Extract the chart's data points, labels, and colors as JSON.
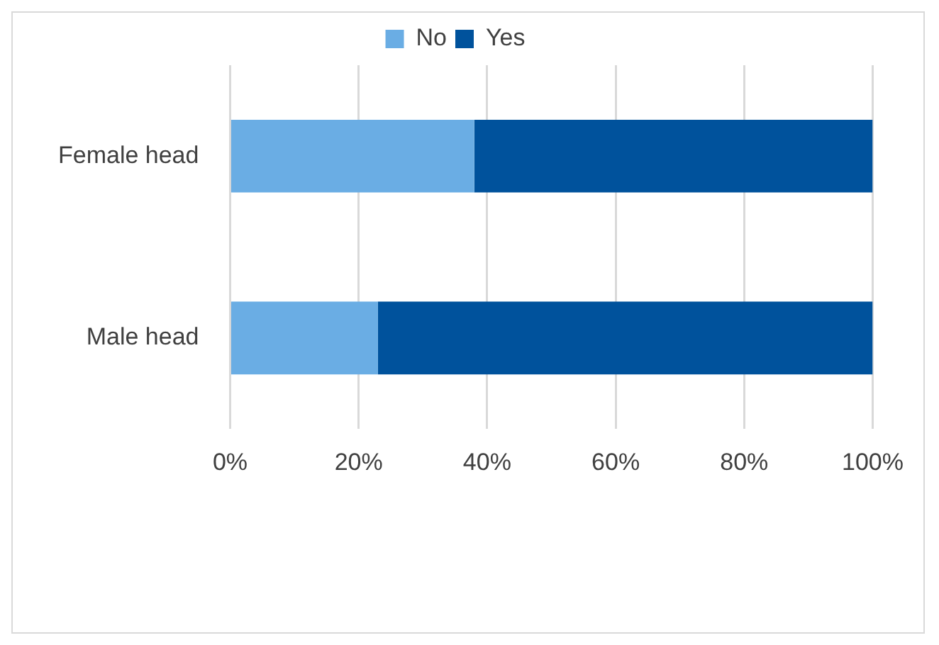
{
  "chart_data": {
    "type": "bar",
    "orientation": "horizontal",
    "stacked": true,
    "categories": [
      "Female head",
      "Male head"
    ],
    "series": [
      {
        "name": "No",
        "color": "#6aade4",
        "values": [
          38,
          23
        ]
      },
      {
        "name": "Yes",
        "color": "#00529c",
        "values": [
          62,
          77
        ]
      }
    ],
    "xlim": [
      0,
      100
    ],
    "xticks": [
      {
        "value": 0,
        "label": "0%"
      },
      {
        "value": 20,
        "label": "20%"
      },
      {
        "value": 40,
        "label": "40%"
      },
      {
        "value": 60,
        "label": "60%"
      },
      {
        "value": 80,
        "label": "80%"
      },
      {
        "value": 100,
        "label": "100%"
      }
    ],
    "grid": "x",
    "legend": "top"
  }
}
